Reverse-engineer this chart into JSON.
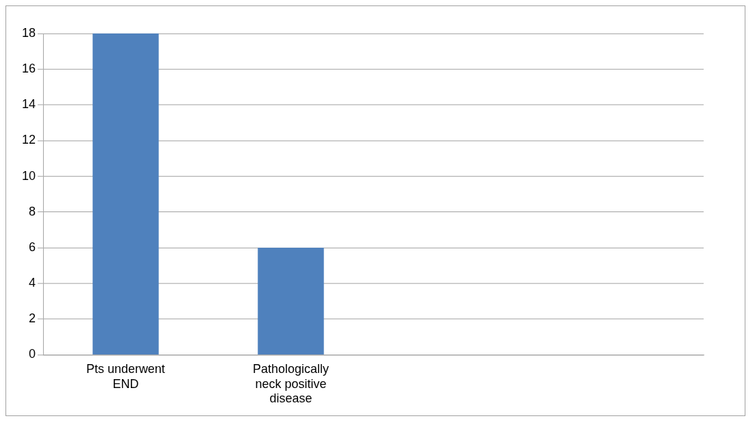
{
  "chart_data": {
    "type": "bar",
    "categories": [
      "Pts underwent END",
      "Pathologically neck positive disease",
      null,
      null
    ],
    "values": [
      18,
      6,
      null,
      null
    ],
    "color": "#4f81bd",
    "ylim": [
      0,
      18
    ],
    "yticks": [
      0,
      2,
      4,
      6,
      8,
      10,
      12,
      14,
      16,
      18
    ],
    "grid": "y"
  }
}
